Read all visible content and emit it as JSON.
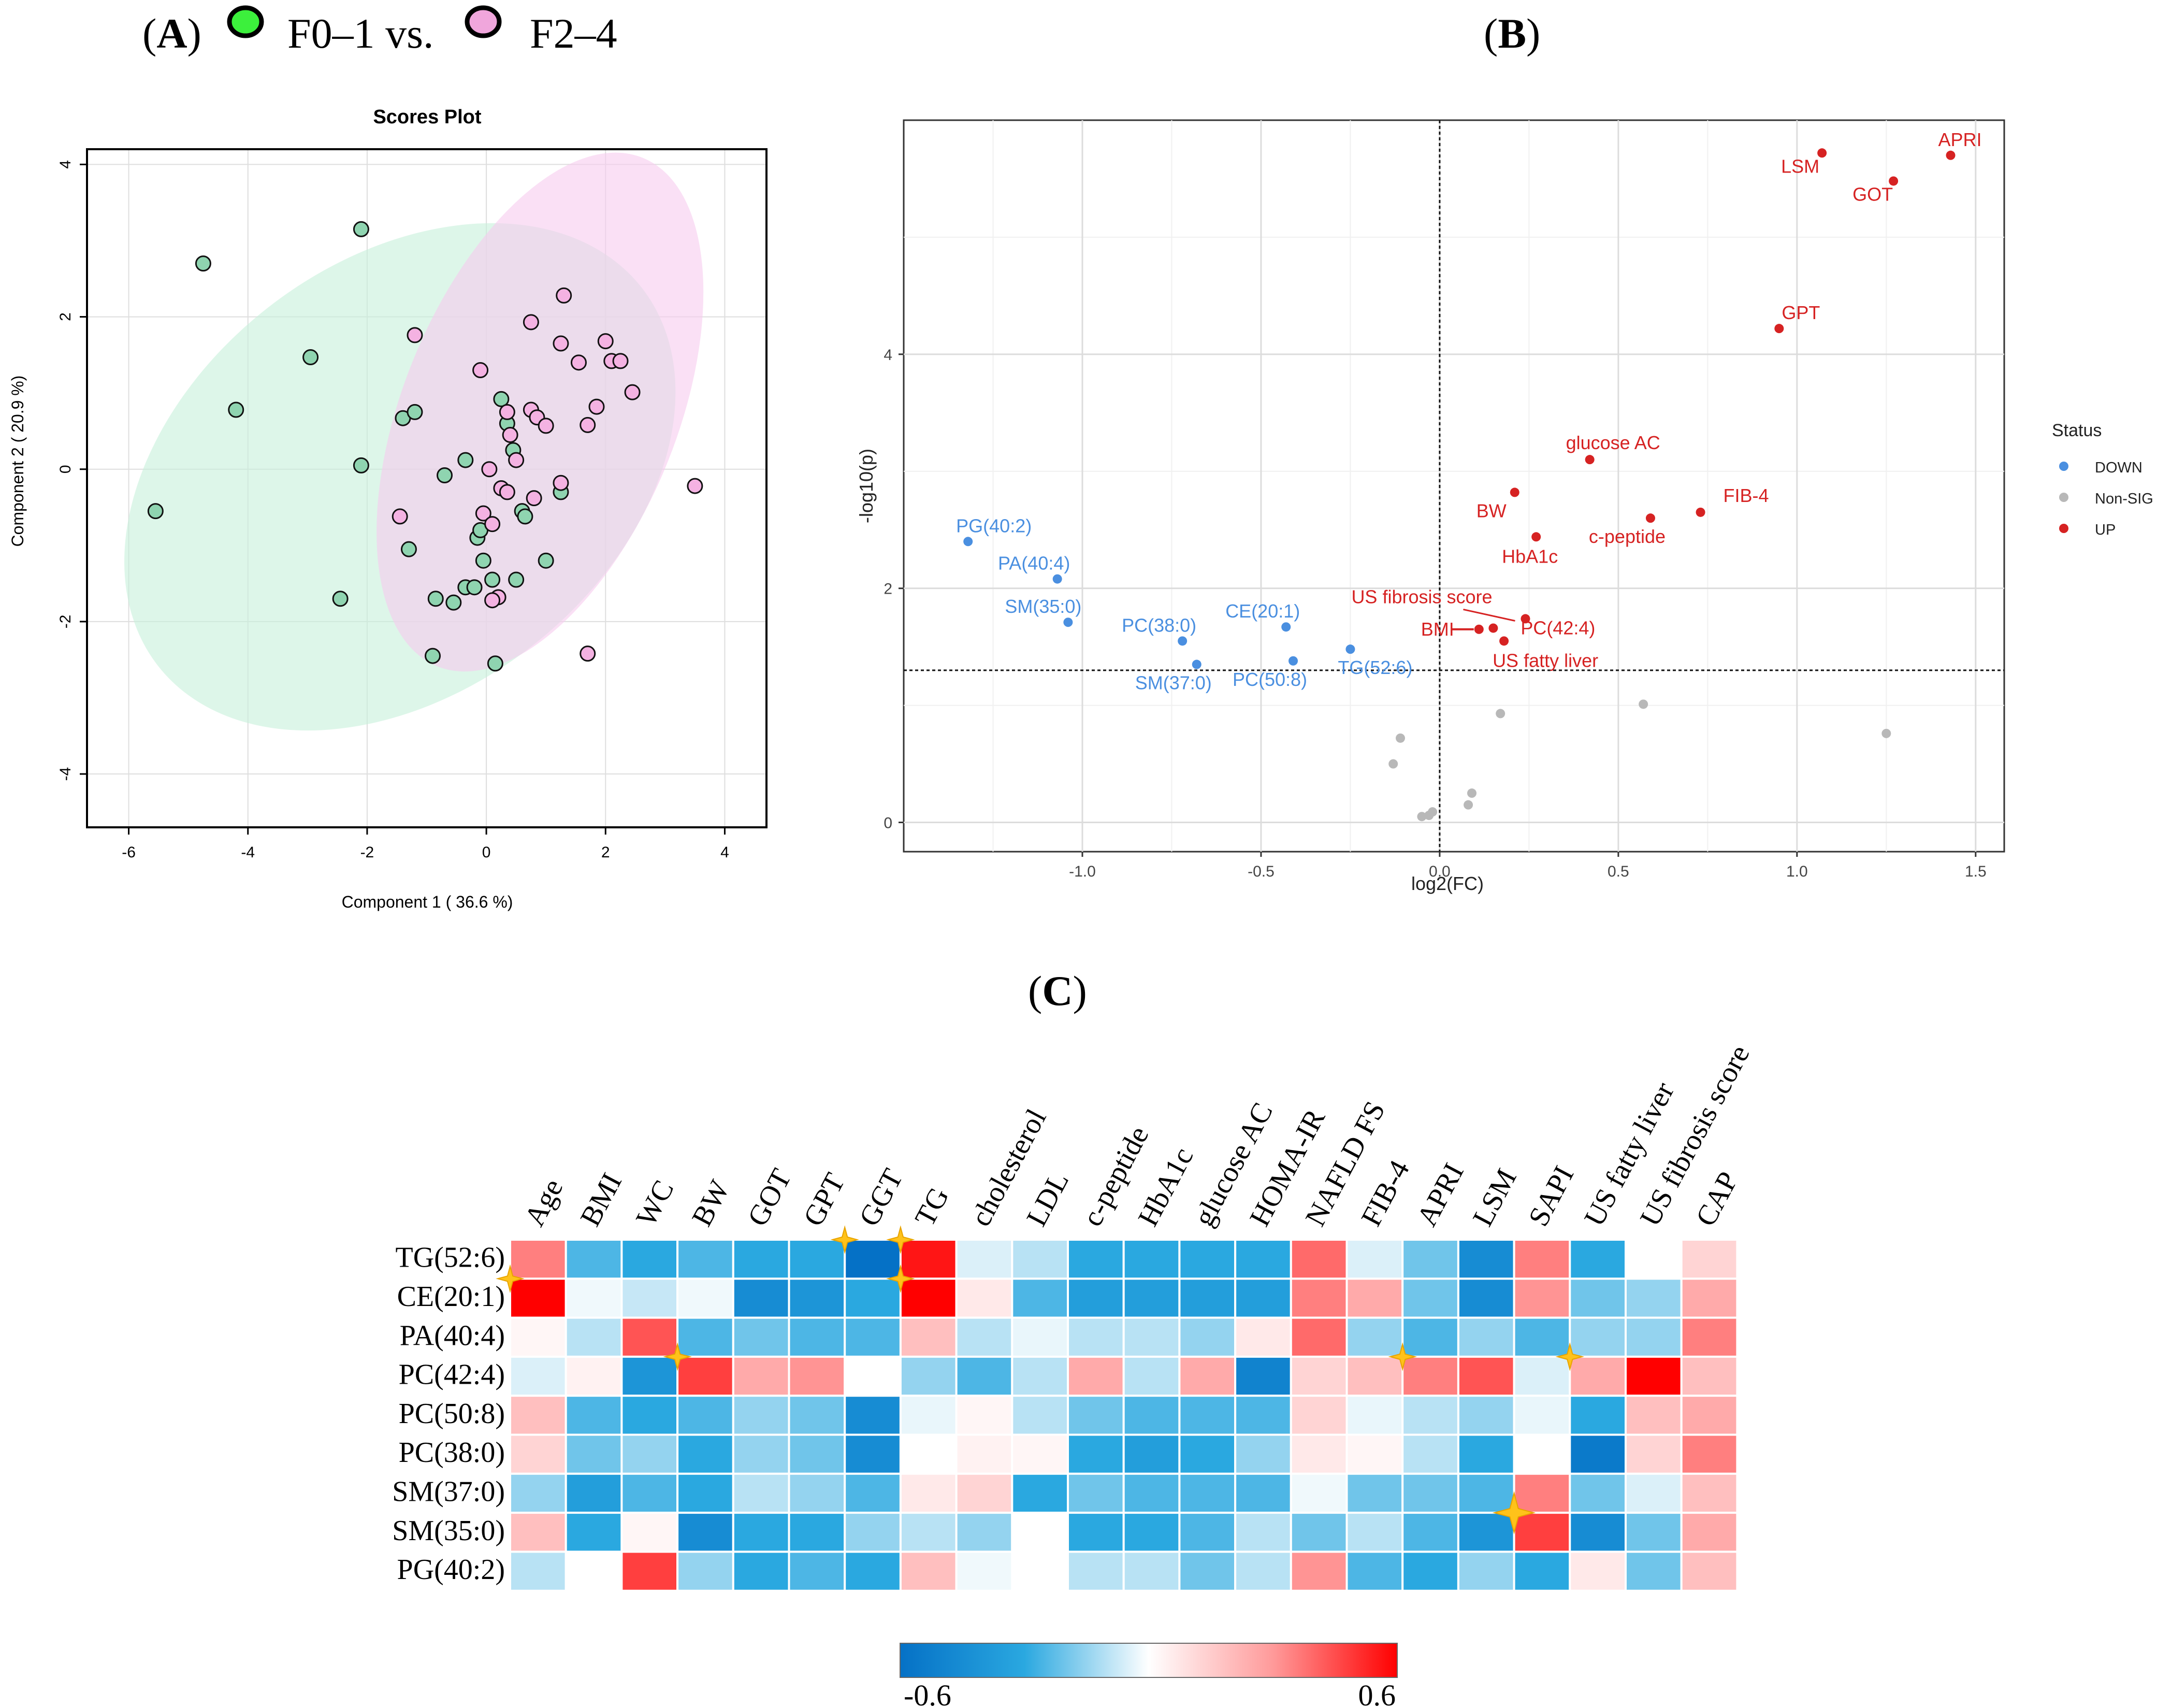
{
  "panel_labels": {
    "a": "A",
    "b": "B",
    "c": "C"
  },
  "legend_top": {
    "group1": "F0–1 vs.",
    "group2": "F2–4",
    "group1_color": "#3cf03c",
    "group2_color": "#f0a6dc"
  },
  "colors": {
    "green": "#8fd4b0",
    "pink": "#f4b2e2",
    "ellipse_green": "#c6f0db",
    "ellipse_pink": "#f7cbee",
    "up": "#d62222",
    "down": "#4a8fe0",
    "nonsig": "#b8b8b8"
  },
  "chart_data": [
    {
      "type": "scatter",
      "title": "Scores Plot",
      "xlabel": "Component 1 ( 36.6 %)",
      "ylabel": "Component 2 ( 20.9 %)",
      "xlim": [
        -6.7,
        4.7
      ],
      "ylim": [
        -4.7,
        4.2
      ],
      "xticks": [
        -6,
        -4,
        -2,
        0,
        2,
        4
      ],
      "xtick_labels": [
        "-6",
        "-4",
        "-2",
        "0",
        "2",
        "4"
      ],
      "yticks": [
        -4,
        -2,
        0,
        2,
        4
      ],
      "ytick_labels": [
        "-4",
        "-2",
        "0",
        "2",
        "4"
      ],
      "ellipses": [
        {
          "group": "F0–1",
          "cx": -1.45,
          "cy": -0.1,
          "rx": 5.15,
          "ry": 3.6,
          "angle": -38
        },
        {
          "group": "F2–4",
          "cx": 0.9,
          "cy": 0.75,
          "rx": 4.6,
          "ry": 2.3,
          "angle": -68
        }
      ],
      "series": [
        {
          "name": "F0–1",
          "points": [
            [
              -5.55,
              -0.55
            ],
            [
              -4.75,
              2.7
            ],
            [
              -4.2,
              0.78
            ],
            [
              -2.95,
              1.47
            ],
            [
              -2.1,
              3.15
            ],
            [
              -2.1,
              0.05
            ],
            [
              -2.45,
              -1.7
            ],
            [
              -1.4,
              0.67
            ],
            [
              -1.2,
              0.75
            ],
            [
              -1.3,
              -1.05
            ],
            [
              -0.85,
              -1.7
            ],
            [
              -0.7,
              -0.08
            ],
            [
              -0.55,
              -1.75
            ],
            [
              -0.35,
              -1.55
            ],
            [
              -0.35,
              0.12
            ],
            [
              -0.2,
              -1.55
            ],
            [
              -0.15,
              -0.9
            ],
            [
              -0.1,
              -0.8
            ],
            [
              -0.05,
              -1.2
            ],
            [
              0.1,
              -1.45
            ],
            [
              0.25,
              0.92
            ],
            [
              0.35,
              0.6
            ],
            [
              0.45,
              0.25
            ],
            [
              0.5,
              -1.45
            ],
            [
              0.6,
              -0.55
            ],
            [
              0.65,
              -0.62
            ],
            [
              1.0,
              -1.2
            ],
            [
              1.25,
              -0.3
            ],
            [
              -0.9,
              -2.45
            ],
            [
              0.15,
              -2.55
            ]
          ]
        },
        {
          "name": "F2–4",
          "points": [
            [
              -1.2,
              1.76
            ],
            [
              -0.1,
              1.3
            ],
            [
              0.35,
              0.75
            ],
            [
              0.4,
              0.45
            ],
            [
              0.5,
              0.12
            ],
            [
              0.25,
              -0.25
            ],
            [
              0.35,
              -0.3
            ],
            [
              0.75,
              0.78
            ],
            [
              0.85,
              0.68
            ],
            [
              1.0,
              0.57
            ],
            [
              0.8,
              -0.38
            ],
            [
              0.05,
              0.0
            ],
            [
              -0.05,
              -0.58
            ],
            [
              0.1,
              -0.72
            ],
            [
              -1.45,
              -0.62
            ],
            [
              0.2,
              -1.68
            ],
            [
              0.1,
              -1.72
            ],
            [
              1.3,
              2.28
            ],
            [
              1.25,
              1.65
            ],
            [
              1.55,
              1.4
            ],
            [
              1.85,
              0.82
            ],
            [
              1.7,
              0.58
            ],
            [
              2.0,
              1.68
            ],
            [
              2.1,
              1.42
            ],
            [
              2.25,
              1.42
            ],
            [
              2.45,
              1.01
            ],
            [
              0.75,
              1.93
            ],
            [
              1.25,
              -0.18
            ],
            [
              1.7,
              -2.42
            ],
            [
              3.5,
              -0.22
            ]
          ]
        }
      ]
    },
    {
      "type": "scatter",
      "subtype": "volcano",
      "xlabel": "log2(FC)",
      "ylabel": "-log10(p)",
      "xlim": [
        -1.5,
        1.58
      ],
      "ylim": [
        -0.25,
        6.0
      ],
      "xticks": [
        -1.0,
        -0.5,
        0.0,
        0.5,
        1.0,
        1.5
      ],
      "xtick_labels": [
        "-1.0",
        "-0.5",
        "0.0",
        "0.5",
        "1.0",
        "1.5"
      ],
      "yticks": [
        0,
        2,
        4
      ],
      "ytick_labels": [
        "0",
        "2",
        "4"
      ],
      "threshold_y": 1.3,
      "threshold_x": 0.0,
      "legend": {
        "title": "Status",
        "entries": [
          "DOWN",
          "Non-SIG",
          "UP"
        ]
      },
      "points": [
        {
          "label": "APRI",
          "x": 1.43,
          "y": 5.7,
          "status": "UP"
        },
        {
          "label": "LSM",
          "x": 1.07,
          "y": 5.72,
          "status": "UP"
        },
        {
          "label": "GOT",
          "x": 1.27,
          "y": 5.48,
          "status": "UP"
        },
        {
          "label": "GPT",
          "x": 0.95,
          "y": 4.22,
          "status": "UP"
        },
        {
          "label": "glucose AC",
          "x": 0.42,
          "y": 3.1,
          "status": "UP"
        },
        {
          "label": "BW",
          "x": 0.21,
          "y": 2.82,
          "status": "UP"
        },
        {
          "label": "FIB-4",
          "x": 0.73,
          "y": 2.65,
          "status": "UP"
        },
        {
          "label": "c-peptide",
          "x": 0.59,
          "y": 2.6,
          "status": "UP"
        },
        {
          "label": "HbA1c",
          "x": 0.27,
          "y": 2.44,
          "status": "UP"
        },
        {
          "label": "US fibrosis score",
          "x": 0.24,
          "y": 1.74,
          "status": "UP"
        },
        {
          "label": "BMI",
          "x": 0.11,
          "y": 1.65,
          "status": "UP"
        },
        {
          "label": "PC(42:4)",
          "x": 0.15,
          "y": 1.66,
          "status": "UP"
        },
        {
          "label": "US fatty liver",
          "x": 0.18,
          "y": 1.55,
          "status": "UP"
        },
        {
          "label": "PG(40:2)",
          "x": -1.32,
          "y": 2.4,
          "status": "DOWN"
        },
        {
          "label": "PA(40:4)",
          "x": -1.07,
          "y": 2.08,
          "status": "DOWN"
        },
        {
          "label": "SM(35:0)",
          "x": -1.04,
          "y": 1.71,
          "status": "DOWN"
        },
        {
          "label": "PC(38:0)",
          "x": -0.72,
          "y": 1.55,
          "status": "DOWN"
        },
        {
          "label": "SM(37:0)",
          "x": -0.68,
          "y": 1.35,
          "status": "DOWN"
        },
        {
          "label": "CE(20:1)",
          "x": -0.43,
          "y": 1.67,
          "status": "DOWN"
        },
        {
          "label": "PC(50:8)",
          "x": -0.41,
          "y": 1.38,
          "status": "DOWN"
        },
        {
          "label": "TG(52:6)",
          "x": -0.25,
          "y": 1.48,
          "status": "DOWN"
        },
        {
          "label": "",
          "x": 0.57,
          "y": 1.01,
          "status": "Non-SIG"
        },
        {
          "label": "",
          "x": 1.25,
          "y": 0.76,
          "status": "Non-SIG"
        },
        {
          "label": "",
          "x": 0.17,
          "y": 0.93,
          "status": "Non-SIG"
        },
        {
          "label": "",
          "x": -0.11,
          "y": 0.72,
          "status": "Non-SIG"
        },
        {
          "label": "",
          "x": -0.13,
          "y": 0.5,
          "status": "Non-SIG"
        },
        {
          "label": "",
          "x": 0.09,
          "y": 0.25,
          "status": "Non-SIG"
        },
        {
          "label": "",
          "x": 0.08,
          "y": 0.15,
          "status": "Non-SIG"
        },
        {
          "label": "",
          "x": -0.02,
          "y": 0.09,
          "status": "Non-SIG"
        },
        {
          "label": "",
          "x": -0.03,
          "y": 0.06,
          "status": "Non-SIG"
        },
        {
          "label": "",
          "x": -0.05,
          "y": 0.05,
          "status": "Non-SIG"
        }
      ]
    },
    {
      "type": "heatmap",
      "columns": [
        "Age",
        "BMI",
        "WC",
        "BW",
        "GOT",
        "GPT",
        "GGT",
        "TG",
        "cholesterol",
        "LDL",
        "c-peptide",
        "HbA1c",
        "glucose AC",
        "HOMA-IR",
        "NAFLD FS",
        "FIB-4",
        "APRI",
        "LSM",
        "SAPI",
        "US fatty liver",
        "US fibrosis score",
        "CAP"
      ],
      "rows": [
        "TG(52:6)",
        "CE(20:1)",
        "PA(40:4)",
        "PC(42:4)",
        "PC(50:8)",
        "PC(38:0)",
        "SM(37:0)",
        "SM(35:0)",
        "PG(40:2)"
      ],
      "values": [
        [
          0.3,
          -0.25,
          -0.3,
          -0.25,
          -0.3,
          -0.3,
          -0.6,
          0.55,
          -0.05,
          -0.1,
          -0.3,
          -0.3,
          -0.3,
          -0.3,
          0.35,
          -0.05,
          -0.2,
          -0.45,
          0.3,
          -0.3,
          0.0,
          0.1
        ],
        [
          0.6,
          -0.02,
          -0.08,
          -0.02,
          -0.45,
          -0.4,
          -0.3,
          0.6,
          0.05,
          -0.25,
          -0.35,
          -0.35,
          -0.35,
          -0.35,
          0.3,
          0.2,
          -0.2,
          -0.45,
          0.25,
          -0.2,
          -0.15,
          0.2
        ],
        [
          0.02,
          -0.1,
          0.4,
          -0.25,
          -0.2,
          -0.25,
          -0.25,
          0.15,
          -0.1,
          -0.03,
          -0.1,
          -0.1,
          -0.15,
          0.05,
          0.35,
          -0.15,
          -0.25,
          -0.15,
          -0.25,
          -0.15,
          -0.15,
          0.3
        ],
        [
          -0.05,
          0.03,
          -0.4,
          0.45,
          0.2,
          0.25,
          0.0,
          -0.15,
          -0.25,
          -0.1,
          0.2,
          -0.1,
          0.2,
          -0.5,
          0.1,
          0.15,
          0.3,
          0.4,
          -0.05,
          0.2,
          0.6,
          0.15
        ],
        [
          0.15,
          -0.25,
          -0.3,
          -0.25,
          -0.15,
          -0.2,
          -0.45,
          -0.03,
          0.02,
          -0.1,
          -0.2,
          -0.25,
          -0.25,
          -0.25,
          0.1,
          -0.03,
          -0.1,
          -0.15,
          -0.03,
          -0.3,
          0.15,
          0.2
        ],
        [
          0.1,
          -0.2,
          -0.15,
          -0.3,
          -0.15,
          -0.2,
          -0.45,
          0.0,
          0.03,
          0.02,
          -0.3,
          -0.35,
          -0.3,
          -0.15,
          0.05,
          0.02,
          -0.1,
          -0.3,
          0.0,
          -0.55,
          0.1,
          0.3
        ],
        [
          -0.15,
          -0.35,
          -0.25,
          -0.3,
          -0.1,
          -0.15,
          -0.25,
          0.05,
          0.1,
          -0.3,
          -0.2,
          -0.25,
          -0.25,
          -0.25,
          -0.02,
          -0.2,
          -0.2,
          -0.25,
          0.3,
          -0.2,
          -0.05,
          0.15
        ],
        [
          0.15,
          -0.3,
          0.02,
          -0.45,
          -0.3,
          -0.3,
          -0.15,
          -0.1,
          -0.15,
          0.0,
          -0.3,
          -0.3,
          -0.25,
          -0.1,
          -0.2,
          -0.1,
          -0.25,
          -0.4,
          0.45,
          -0.45,
          -0.2,
          0.2
        ],
        [
          -0.1,
          0.0,
          0.45,
          -0.15,
          -0.3,
          -0.25,
          -0.3,
          0.15,
          -0.02,
          0.0,
          -0.1,
          -0.1,
          -0.2,
          -0.1,
          0.25,
          -0.25,
          -0.3,
          -0.15,
          -0.3,
          0.05,
          -0.2,
          0.15
        ]
      ],
      "colorbar": {
        "min": -0.6,
        "max": 0.6,
        "min_label": "-0.6",
        "max_label": "0.6"
      },
      "stars": [
        [
          0,
          6
        ],
        [
          0,
          7
        ],
        [
          1,
          0
        ],
        [
          1,
          7
        ],
        [
          3,
          3
        ],
        [
          3,
          16
        ],
        [
          3,
          19
        ],
        [
          7,
          18
        ]
      ]
    }
  ]
}
